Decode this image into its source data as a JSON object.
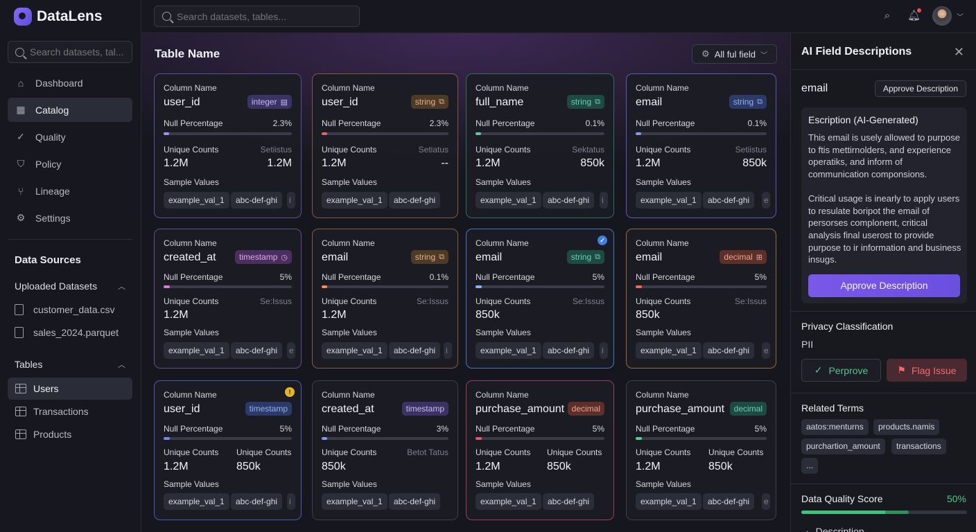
{
  "app": {
    "name": "DataLens"
  },
  "sidebar": {
    "search_placeholder": "Search datasets, tal...",
    "nav": [
      {
        "label": "Dashboard",
        "icon": "home-icon"
      },
      {
        "label": "Catalog",
        "icon": "grid-icon",
        "active": true
      },
      {
        "label": "Quality",
        "icon": "check-circle-icon"
      },
      {
        "label": "Policy",
        "icon": "shield-icon"
      },
      {
        "label": "Lineage",
        "icon": "lineage-icon"
      },
      {
        "label": "Settings",
        "icon": "gear-icon"
      }
    ],
    "data_sources_title": "Data Sources",
    "uploaded_title": "Uploaded Datasets",
    "uploaded": [
      "customer_data.csv",
      "sales_2024.parquet"
    ],
    "tables_title": "Tables",
    "tables": [
      {
        "label": "Users",
        "active": true
      },
      {
        "label": "Transactions"
      },
      {
        "label": "Products"
      }
    ]
  },
  "topbar": {
    "search_placeholder": "Search datasets, tables..."
  },
  "main": {
    "title": "Table Name",
    "filter_label": "All ful field",
    "column_name_label": "Column Name",
    "null_label": "Null Percentage",
    "unique_label": "Unique Counts",
    "sample_label": "Sample Values",
    "cards": [
      {
        "name": "user_id",
        "type": "integer",
        "null": "2.3%",
        "fill": 0.023,
        "unique": "1.2M",
        "sec_label": "Setiistus",
        "sec_value": "1.2M",
        "samples": [
          "example_val_1",
          "abc-def-ghi",
          "i"
        ]
      },
      {
        "name": "user_id",
        "type": "string",
        "null": "2.3%",
        "fill": 0.023,
        "unique": "1.2M",
        "sec_label": "Setiatus",
        "sec_value": "--",
        "samples": [
          "example_val_1",
          "abc-def-ghi"
        ]
      },
      {
        "name": "full_name",
        "type": "string",
        "null": "0.1%",
        "fill": 0.001,
        "unique": "1.2M",
        "sec_label": "Sektatus",
        "sec_value": "850k",
        "samples": [
          "example_val_1",
          "abc-def-ghi",
          "i"
        ]
      },
      {
        "name": "email",
        "type": "string",
        "null": "0.1%",
        "fill": 0.001,
        "unique": "1.2M",
        "sec_label": "Setiistus",
        "sec_value": "850k",
        "samples": [
          "example_val_1",
          "abc-def-ghi",
          "e"
        ]
      },
      {
        "name": "created_at",
        "type": "timestamp",
        "null": "5%",
        "fill": 0.05,
        "unique": "1.2M",
        "sec_label": "Se:Issus",
        "sec_value": "",
        "samples": [
          "example_val_1",
          "abc-def-ghi",
          "e"
        ]
      },
      {
        "name": "email",
        "type": "string",
        "null": "0.1%",
        "fill": 0.001,
        "unique": "1.2M",
        "sec_label": "Se:Issus",
        "sec_value": "",
        "samples": [
          "example_val_1",
          "abc-def-ghi",
          "i"
        ]
      },
      {
        "name": "email",
        "type": "string",
        "null": "5%",
        "fill": 0.05,
        "unique": "850k",
        "sec_label": "Se:Issus",
        "sec_value": "",
        "samples": [
          "example_val_1",
          "abc-def-ghi",
          "i"
        ]
      },
      {
        "name": "email",
        "type": "decimal",
        "null": "5%",
        "fill": 0.05,
        "unique": "850k",
        "sec_label": "Se:Issus",
        "sec_value": "",
        "samples": [
          "example_val_1",
          "abc-def-ghi",
          "e"
        ]
      },
      {
        "name": "user_id",
        "type": "timestamp",
        "null": "5%",
        "fill": 0.05,
        "unique": "1.2M",
        "sec_label": "Unique Counts",
        "sec_value": "850k",
        "samples": [
          "example_val_1",
          "abc-def-ghi",
          "i"
        ]
      },
      {
        "name": "created_at",
        "type": "timestamp",
        "null": "3%",
        "fill": 0.03,
        "unique": "850k",
        "sec_label": "Betot Tatus",
        "sec_value": "",
        "samples": [
          "example_val_1",
          "abc-def-ghi"
        ]
      },
      {
        "name": "purchase_amount",
        "type": "decimal",
        "null": "5%",
        "fill": 0.05,
        "unique": "1.2M",
        "sec_label": "Unique Counts",
        "sec_value": "850k",
        "samples": [
          "example_val_1",
          "abc-def-ghi"
        ]
      },
      {
        "name": "purchase_amount",
        "type": "decimal",
        "null": "5%",
        "fill": 0.05,
        "unique": "1.2M",
        "sec_label": "Unique Counts",
        "sec_value": "850k",
        "samples": [
          "example_val_1",
          "abc-def-ghi",
          "e"
        ]
      }
    ]
  },
  "panel": {
    "title": "AI Field Descriptions",
    "field": "email",
    "approve_small": "Approve Description",
    "desc_heading": "Escription (AI-Generated)",
    "desc_p1": "This email is usely allowed to purpose to ftis mettirnolders, and experience operatiks, and inform of communication componsions.",
    "desc_p2": "Critical usage is inearly to apply users to resulate boripot the email of persorses complonent, critical analysis final userost to provide purpose to ir information and business insugs.",
    "approve_large": "Approve Description",
    "privacy_title": "Privacy Classification",
    "privacy_value": "PII",
    "approve_green": "Perprove",
    "flag_label": "Flag Issue",
    "related_title": "Related Terms",
    "terms": [
      "aatos:menturns",
      "products.namis",
      "purchartion_amount",
      "transactions",
      "..."
    ],
    "quality_title": "Data Quality Score",
    "quality_value": "50%",
    "quality_fill": 0.5,
    "next_section": "Description"
  }
}
